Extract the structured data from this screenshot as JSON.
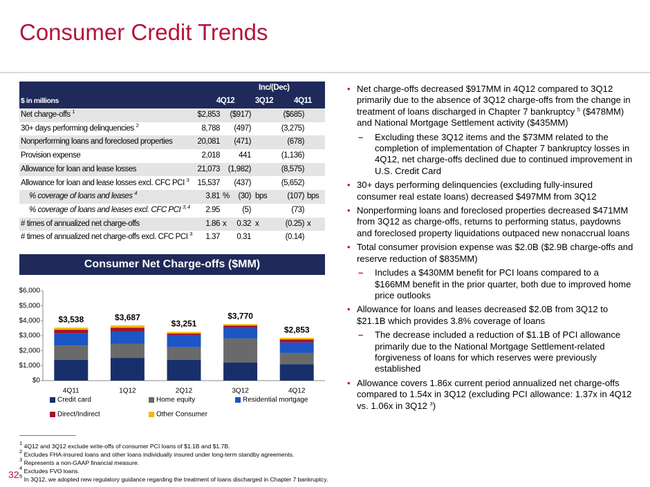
{
  "header": {
    "title": "Consumer Credit Trends"
  },
  "table": {
    "unit_label": "$ in millions",
    "group_label": "Inc/(Dec)",
    "columns": [
      "4Q12",
      "3Q12",
      "4Q11"
    ],
    "rows": [
      {
        "label": "Net charge-offs",
        "note": "1",
        "cells": [
          "$2,853",
          "($917)",
          "($685)"
        ]
      },
      {
        "label": "30+ days performing delinquencies",
        "note": "2",
        "cells": [
          "8,788",
          "(497)",
          "(3,275)"
        ]
      },
      {
        "label": "Nonperforming loans and foreclosed properties",
        "cells": [
          "20,081",
          "(471)",
          "(678)"
        ]
      },
      {
        "label": "Provision expense",
        "cells": [
          "2,018",
          "441",
          "(1,136)"
        ]
      },
      {
        "label": "Allowance for loan and lease losses",
        "cells": [
          "21,073",
          "(1,982)",
          "(8,575)"
        ]
      },
      {
        "label": "Allowance for loan and lease losses excl. CFC PCI",
        "note": "3",
        "cells": [
          "15,537",
          "(437)",
          "(5,652)"
        ]
      },
      {
        "label": "% coverage of loans and leases",
        "note": "4",
        "italic": true,
        "cells": [
          "3.81",
          "(30)",
          "(107)"
        ],
        "units": [
          "%",
          "bps",
          "bps"
        ]
      },
      {
        "label": "% coverage of loans and leases excl. CFC PCI",
        "note": "3, 4",
        "italic": true,
        "cells": [
          "2.95",
          "(5)",
          "(73)"
        ]
      },
      {
        "label": "# times of annualized net charge-offs",
        "cells": [
          "1.86",
          "0.32",
          "(0.25)"
        ],
        "units": [
          "x",
          "x",
          "x"
        ]
      },
      {
        "label": "# times of annualized net charge-offs excl. CFC PCI",
        "note": "3",
        "cells": [
          "1.37",
          "0.31",
          "(0.14)"
        ]
      }
    ]
  },
  "chart_data": {
    "type": "bar",
    "stacked": true,
    "title": "Consumer Net Charge-offs ($MM)",
    "categories": [
      "4Q11",
      "1Q12",
      "2Q12",
      "3Q12",
      "4Q12"
    ],
    "series": [
      {
        "name": "Credit card",
        "color": "#17306b",
        "values": [
          1400,
          1520,
          1400,
          1200,
          1100
        ]
      },
      {
        "name": "Home equity",
        "color": "#6a6a6a",
        "values": [
          950,
          930,
          830,
          1620,
          750
        ]
      },
      {
        "name": "Residential mortgage",
        "color": "#1c55c4",
        "values": [
          800,
          830,
          820,
          700,
          700
        ]
      },
      {
        "name": "Direct/Indirect",
        "color": "#a3122f",
        "values": [
          250,
          250,
          100,
          150,
          200
        ]
      },
      {
        "name": "Other Consumer",
        "color": "#f5b800",
        "values": [
          138,
          157,
          101,
          100,
          103
        ]
      }
    ],
    "totals": [
      3538,
      3687,
      3251,
      3770,
      2853
    ],
    "total_labels": [
      "$3,538",
      "$3,687",
      "$3,251",
      "$3,770",
      "$2,853"
    ],
    "ylim": [
      0,
      6000
    ],
    "yticks": [
      {
        "value": 0,
        "label": "$0"
      },
      {
        "value": 1000,
        "label": "$1,000"
      },
      {
        "value": 2000,
        "label": "$2,000"
      },
      {
        "value": 3000,
        "label": "$3,000"
      },
      {
        "value": 4000,
        "label": "$4,000"
      },
      {
        "value": 5000,
        "label": "$5,000"
      },
      {
        "value": 6000,
        "label": "$6,000"
      }
    ],
    "grid": false,
    "legend": "bottom"
  },
  "bullets": [
    {
      "level": 1,
      "parts": [
        {
          "t": "Net charge-offs decreased $917MM in 4Q12 compared to 3Q12 primarily due to the absence of 3Q12 charge-offs from the change in treatment of loans discharged in Chapter 7 bankruptcy "
        },
        {
          "sup": "5"
        },
        {
          "t": " ($478MM) and National Mortgage Settlement activity ($435MM)"
        }
      ]
    },
    {
      "level": 2,
      "parts": [
        {
          "t": "Excluding these 3Q12 items and the $73MM related to the completion of implementation of Chapter 7 bankruptcy losses in 4Q12, net charge-offs declined due to continued improvement in U.S. Credit Card"
        }
      ]
    },
    {
      "level": 1,
      "parts": [
        {
          "t": "30+ days performing delinquencies (excluding fully-insured consumer real estate loans) decreased $497MM from 3Q12"
        }
      ]
    },
    {
      "level": 1,
      "parts": [
        {
          "t": "Nonperforming loans and foreclosed properties decreased $471MM from 3Q12 as charge-offs, returns to performing status, paydowns and foreclosed property liquidations outpaced new nonaccrual loans"
        }
      ]
    },
    {
      "level": 1,
      "parts": [
        {
          "t": "Total consumer provision expense was $2.0B ($2.9B charge-offs and reserve reduction of $835MM)"
        }
      ]
    },
    {
      "level": 2,
      "parts": [
        {
          "t": "Includes a $430MM benefit for PCI loans compared to a $166MM benefit in the prior quarter, both due to improved home price outlooks"
        }
      ]
    },
    {
      "level": 1,
      "parts": [
        {
          "t": "Allowance for loans and leases decreased $2.0B from 3Q12 to $21.1B which provides 3.8% coverage of loans"
        }
      ]
    },
    {
      "level": 2,
      "parts": [
        {
          "t": "The decrease included a reduction of $1.1B of PCI allowance primarily due to the National Mortgage Settlement-related forgiveness of loans for which reserves were previously established"
        }
      ]
    },
    {
      "level": 1,
      "parts": [
        {
          "t": "Allowance covers 1.86x current period annualized net charge-offs compared to 1.54x in 3Q12 (excluding PCI allowance: 1.37x in 4Q12 vs. 1.06x in 3Q12 "
        },
        {
          "sup": "3"
        },
        {
          "t": ")"
        }
      ]
    }
  ],
  "footnotes": [
    {
      "mark": "1",
      "text": "4Q12 and 3Q12 exclude write-offs of consumer PCI loans of $1.1B and $1.7B."
    },
    {
      "mark": "2",
      "text": "Excludes FHA-insured loans and other loans individually insured under long-term standby agreements."
    },
    {
      "mark": "3",
      "text": "Represents a non-GAAP financial measure."
    },
    {
      "mark": "4",
      "text": "Excludes FVO loans."
    },
    {
      "mark": "5",
      "text": "In 3Q12, we adopted new regulatory guidance regarding the treatment of loans discharged in Chapter 7 bankruptcy."
    }
  ],
  "page_number": "32"
}
